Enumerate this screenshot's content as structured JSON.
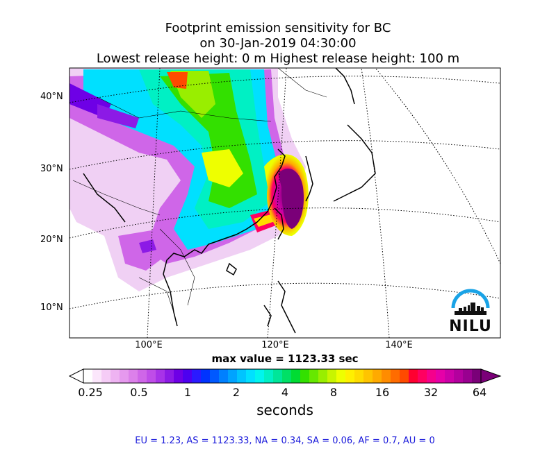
{
  "title": {
    "line1": "Footprint emission sensitivity for BC",
    "line2": "on 30-Jan-2019 04:30:00",
    "line3": "Lowest release height: 0 m       Highest release height: 100 m"
  },
  "map": {
    "lat_labels": [
      "40°N",
      "30°N",
      "20°N",
      "10°N"
    ],
    "lon_labels": [
      "100°E",
      "120°E",
      "140°E"
    ]
  },
  "max_value_text": "max value = 1123.33 sec",
  "colorbar": {
    "ticks": [
      "0.25",
      "0.5",
      "1",
      "2",
      "4",
      "8",
      "16",
      "32",
      "64"
    ],
    "unit": "seconds",
    "colors": [
      "#ffffff",
      "#fbe6fb",
      "#f5ccf6",
      "#eeb3f2",
      "#e699ee",
      "#dc80ea",
      "#cf66e8",
      "#bf4de8",
      "#a833e8",
      "#8c1ae6",
      "#6e00e6",
      "#4d00f0",
      "#2a1aff",
      "#0033ff",
      "#0059ff",
      "#0080ff",
      "#00a3ff",
      "#00c4ff",
      "#00e0ff",
      "#00f5ee",
      "#00f0c4",
      "#00e699",
      "#00e066",
      "#00dc33",
      "#33e000",
      "#66e800",
      "#99ee00",
      "#c8f500",
      "#eeff00",
      "#fff000",
      "#ffdc00",
      "#ffc400",
      "#ffaa00",
      "#ff8c00",
      "#ff6c00",
      "#ff4a00",
      "#ff0030",
      "#ff0060",
      "#f5008c",
      "#e600a8",
      "#cc00a8",
      "#b3009e",
      "#990090",
      "#7a0078"
    ]
  },
  "logo": {
    "text": "NILU"
  },
  "footer": "EU = 1.23,  AS = 1123.33,  NA = 0.34,  SA = 0.06,  AF = 0.7,  AU = 0"
}
